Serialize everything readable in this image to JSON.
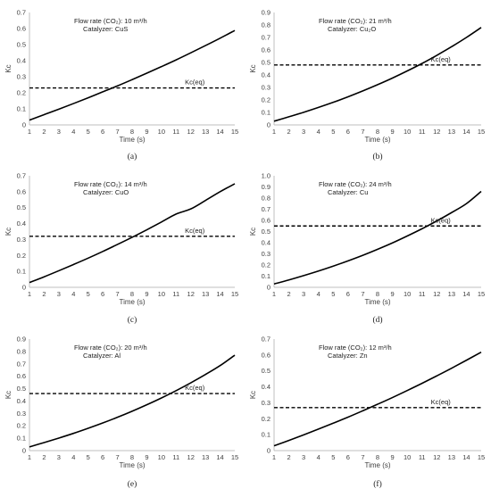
{
  "figure": {
    "panels": [
      {
        "label": "(a)",
        "flow_rate": "Flow rate  (CO₂): 10 m³/h",
        "catalyzer": "Catalyzer: CuS"
      },
      {
        "label": "(b)",
        "flow_rate": "Flow rate  (CO₂): 21 m³/h",
        "catalyzer": "Catalyzer: Cu₂O"
      },
      {
        "label": "(c)",
        "flow_rate": "Flow rate  (CO₂): 14 m³/h",
        "catalyzer": "Catalyzer: CuO"
      },
      {
        "label": "(d)",
        "flow_rate": "Flow rate  (CO₂): 24 m³/h",
        "catalyzer": "Catalyzer: Cu"
      },
      {
        "label": "(e)",
        "flow_rate": "Flow rate  (CO₂): 20 m³/h",
        "catalyzer": "Catalyzer: Al"
      },
      {
        "label": "(f)",
        "flow_rate": "Flow rate  (CO₂): 12 m³/h",
        "catalyzer": "Catalyzer: Zn"
      }
    ]
  },
  "colors": {
    "curve": "#000000",
    "axis": "#bfbfbf",
    "text": "#404040"
  },
  "chart_data": [
    {
      "type": "line",
      "xlabel": "Time (s)",
      "ylabel": "Kc",
      "x": [
        1,
        2,
        3,
        4,
        5,
        6,
        7,
        8,
        9,
        10,
        11,
        12,
        13,
        14,
        15
      ],
      "ylim": [
        0,
        0.7
      ],
      "yticks": [
        "0",
        "0.1",
        "0.2",
        "0.3",
        "0.4",
        "0.5",
        "0.6",
        "0.7"
      ],
      "series": [
        {
          "values": [
            0.03,
            0.064,
            0.098,
            0.133,
            0.169,
            0.206,
            0.243,
            0.282,
            0.322,
            0.363,
            0.405,
            0.449,
            0.494,
            0.54,
            0.588
          ],
          "style": "solid"
        },
        {
          "name": "Kc(eq)",
          "values": [
            0.23,
            0.23,
            0.23,
            0.23,
            0.23,
            0.23,
            0.23,
            0.23,
            0.23,
            0.23,
            0.23,
            0.23,
            0.23,
            0.23,
            0.23
          ],
          "style": "dashed"
        }
      ],
      "grid": false
    },
    {
      "type": "line",
      "xlabel": "Time (s)",
      "ylabel": "Kc",
      "x": [
        1,
        2,
        3,
        4,
        5,
        6,
        7,
        8,
        9,
        10,
        11,
        12,
        13,
        14,
        15
      ],
      "ylim": [
        0,
        0.9
      ],
      "yticks": [
        "0",
        "0.1",
        "0.2",
        "0.3",
        "0.4",
        "0.5",
        "0.6",
        "0.7",
        "0.8",
        "0.9"
      ],
      "series": [
        {
          "values": [
            0.03,
            0.065,
            0.101,
            0.14,
            0.181,
            0.225,
            0.272,
            0.322,
            0.375,
            0.432,
            0.492,
            0.557,
            0.626,
            0.7,
            0.78
          ],
          "style": "solid"
        },
        {
          "name": "Kc(eq)",
          "values": [
            0.48,
            0.48,
            0.48,
            0.48,
            0.48,
            0.48,
            0.48,
            0.48,
            0.48,
            0.48,
            0.48,
            0.48,
            0.48,
            0.48,
            0.48
          ],
          "style": "dashed"
        }
      ],
      "grid": false
    },
    {
      "type": "line",
      "xlabel": "Time (s)",
      "ylabel": "Kc",
      "x": [
        1,
        2,
        3,
        4,
        5,
        6,
        7,
        8,
        9,
        10,
        11,
        12,
        13,
        14,
        15
      ],
      "ylim": [
        0,
        0.7
      ],
      "yticks": [
        "0",
        "0.1",
        "0.2",
        "0.3",
        "0.4",
        "0.5",
        "0.6",
        "0.7"
      ],
      "series": [
        {
          "values": [
            0.03,
            0.066,
            0.104,
            0.143,
            0.183,
            0.225,
            0.269,
            0.314,
            0.361,
            0.41,
            0.46,
            0.492,
            0.545,
            0.6,
            0.65
          ],
          "style": "solid"
        },
        {
          "name": "Kc(eq)",
          "values": [
            0.32,
            0.32,
            0.32,
            0.32,
            0.32,
            0.32,
            0.32,
            0.32,
            0.32,
            0.32,
            0.32,
            0.32,
            0.32,
            0.32,
            0.32
          ],
          "style": "dashed"
        }
      ],
      "grid": false
    },
    {
      "type": "line",
      "xlabel": "Time (s)",
      "ylabel": "Kc",
      "x": [
        1,
        2,
        3,
        4,
        5,
        6,
        7,
        8,
        9,
        10,
        11,
        12,
        13,
        14,
        15
      ],
      "ylim": [
        0,
        1.0
      ],
      "yticks": [
        "0",
        "0.1",
        "0.2",
        "0.3",
        "0.4",
        "0.5",
        "0.6",
        "0.7",
        "0.8",
        "0.9",
        "1.0"
      ],
      "series": [
        {
          "values": [
            0.03,
            0.066,
            0.105,
            0.146,
            0.19,
            0.237,
            0.287,
            0.341,
            0.398,
            0.46,
            0.525,
            0.595,
            0.67,
            0.75,
            0.86
          ],
          "style": "solid"
        },
        {
          "name": "Kc(eq)",
          "values": [
            0.55,
            0.55,
            0.55,
            0.55,
            0.55,
            0.55,
            0.55,
            0.55,
            0.55,
            0.55,
            0.55,
            0.55,
            0.55,
            0.55,
            0.55
          ],
          "style": "dashed"
        }
      ],
      "grid": false
    },
    {
      "type": "line",
      "xlabel": "Time (s)",
      "ylabel": "Kc",
      "x": [
        1,
        2,
        3,
        4,
        5,
        6,
        7,
        8,
        9,
        10,
        11,
        12,
        13,
        14,
        15
      ],
      "ylim": [
        0,
        0.9
      ],
      "yticks": [
        "0",
        "0.1",
        "0.2",
        "0.3",
        "0.4",
        "0.5",
        "0.6",
        "0.7",
        "0.8",
        "0.9"
      ],
      "series": [
        {
          "values": [
            0.03,
            0.065,
            0.101,
            0.139,
            0.18,
            0.223,
            0.269,
            0.318,
            0.37,
            0.425,
            0.484,
            0.547,
            0.614,
            0.686,
            0.77
          ],
          "style": "solid"
        },
        {
          "name": "Kc(eq)",
          "values": [
            0.46,
            0.46,
            0.46,
            0.46,
            0.46,
            0.46,
            0.46,
            0.46,
            0.46,
            0.46,
            0.46,
            0.46,
            0.46,
            0.46,
            0.46
          ],
          "style": "dashed"
        }
      ],
      "grid": false
    },
    {
      "type": "line",
      "xlabel": "Time (s)",
      "ylabel": "Kc",
      "x": [
        1,
        2,
        3,
        4,
        5,
        6,
        7,
        8,
        9,
        10,
        11,
        12,
        13,
        14,
        15
      ],
      "ylim": [
        0,
        0.7
      ],
      "yticks": [
        "0",
        "0.1",
        "0.2",
        "0.3",
        "0.4",
        "0.5",
        "0.6",
        "0.7"
      ],
      "series": [
        {
          "values": [
            0.03,
            0.064,
            0.099,
            0.135,
            0.172,
            0.21,
            0.25,
            0.291,
            0.333,
            0.377,
            0.422,
            0.469,
            0.517,
            0.567,
            0.618
          ],
          "style": "solid"
        },
        {
          "name": "Kc(eq)",
          "values": [
            0.27,
            0.27,
            0.27,
            0.27,
            0.27,
            0.27,
            0.27,
            0.27,
            0.27,
            0.27,
            0.27,
            0.27,
            0.27,
            0.27,
            0.27
          ],
          "style": "dashed"
        }
      ],
      "grid": false
    }
  ]
}
